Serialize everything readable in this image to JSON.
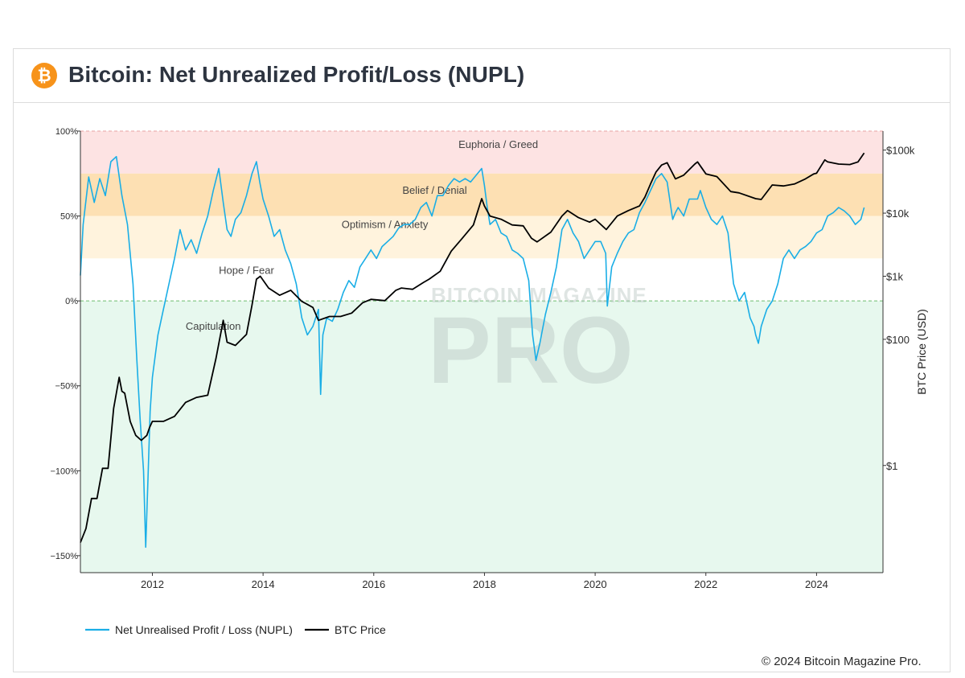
{
  "header": {
    "title": "Bitcoin: Net Unrealized Profit/Loss (NUPL)",
    "logo_glyph": "₿"
  },
  "footer": {
    "credit": "© 2024 Bitcoin Magazine Pro."
  },
  "watermark": {
    "line1": "BITCOIN MAGAZINE",
    "line2": "PRO"
  },
  "chart_data": {
    "type": "line",
    "title": "Bitcoin: Net Unrealized Profit/Loss (NUPL)",
    "x_range": [
      2010.7,
      2025.2
    ],
    "x_ticks": [
      2012,
      2014,
      2016,
      2018,
      2020,
      2022,
      2024
    ],
    "x_tick_labels": [
      "2012",
      "2014",
      "2016",
      "2018",
      "2020",
      "2022",
      "2024"
    ],
    "y_left": {
      "range": [
        -160,
        100
      ],
      "ticks": [
        100,
        50,
        0,
        -50,
        -100,
        -150
      ],
      "tick_labels": [
        "100%",
        "50%",
        "0%",
        "−50%",
        "−100%",
        "−150%"
      ]
    },
    "y_right": {
      "label": "BTC Price (USD)",
      "scale": "log",
      "range": [
        0.02,
        200000
      ],
      "ticks": [
        100000,
        10000,
        1000,
        100,
        1
      ],
      "tick_labels": [
        "$100k",
        "$10k",
        "$1k",
        "$100",
        "$1"
      ]
    },
    "zones": [
      {
        "name": "Euphoria / Greed",
        "from": 75,
        "to": 100,
        "color": "#fde3e3"
      },
      {
        "name": "Belief / Denial",
        "from": 50,
        "to": 75,
        "color": "#fde0b3"
      },
      {
        "name": "Optimism / Anxiety",
        "from": 25,
        "to": 50,
        "color": "#fff3dd"
      },
      {
        "name": "Hope / Fear",
        "from": 0,
        "to": 25,
        "color": "#ffffff"
      },
      {
        "name": "Capitulation",
        "from": -160,
        "to": 0,
        "color": "#e7f8ee"
      }
    ],
    "legend": [
      {
        "name": "Net Unrealised Profit / Loss (NUPL)",
        "color": "#1aaee6"
      },
      {
        "name": "BTC Price",
        "color": "#000000"
      }
    ],
    "series": [
      {
        "name": "Net Unrealised Profit / Loss (NUPL)",
        "axis": "left",
        "color": "#1aaee6",
        "x": [
          2010.7,
          2010.75,
          2010.85,
          2010.95,
          2011.05,
          2011.15,
          2011.25,
          2011.35,
          2011.45,
          2011.55,
          2011.65,
          2011.72,
          2011.78,
          2011.84,
          2011.88,
          2011.92,
          2011.96,
          2012.0,
          2012.1,
          2012.2,
          2012.3,
          2012.4,
          2012.5,
          2012.6,
          2012.7,
          2012.8,
          2012.9,
          2013.0,
          2013.1,
          2013.2,
          2013.28,
          2013.35,
          2013.42,
          2013.5,
          2013.6,
          2013.7,
          2013.8,
          2013.88,
          2013.94,
          2014.0,
          2014.1,
          2014.2,
          2014.3,
          2014.4,
          2014.5,
          2014.6,
          2014.7,
          2014.8,
          2014.9,
          2015.0,
          2015.04,
          2015.08,
          2015.15,
          2015.25,
          2015.35,
          2015.45,
          2015.55,
          2015.65,
          2015.75,
          2015.85,
          2015.95,
          2016.05,
          2016.15,
          2016.25,
          2016.35,
          2016.45,
          2016.55,
          2016.65,
          2016.75,
          2016.85,
          2016.95,
          2017.05,
          2017.15,
          2017.25,
          2017.35,
          2017.45,
          2017.55,
          2017.65,
          2017.75,
          2017.85,
          2017.95,
          2018.0,
          2018.05,
          2018.1,
          2018.2,
          2018.3,
          2018.4,
          2018.5,
          2018.6,
          2018.7,
          2018.8,
          2018.87,
          2018.93,
          2019.0,
          2019.1,
          2019.2,
          2019.3,
          2019.4,
          2019.5,
          2019.6,
          2019.7,
          2019.8,
          2019.9,
          2020.0,
          2020.1,
          2020.19,
          2020.22,
          2020.3,
          2020.4,
          2020.5,
          2020.6,
          2020.7,
          2020.8,
          2020.9,
          2021.0,
          2021.1,
          2021.2,
          2021.3,
          2021.4,
          2021.45,
          2021.5,
          2021.6,
          2021.7,
          2021.8,
          2021.85,
          2021.9,
          2022.0,
          2022.1,
          2022.2,
          2022.3,
          2022.4,
          2022.45,
          2022.5,
          2022.6,
          2022.7,
          2022.8,
          2022.87,
          2022.9,
          2022.95,
          2023.0,
          2023.1,
          2023.2,
          2023.3,
          2023.4,
          2023.5,
          2023.6,
          2023.7,
          2023.8,
          2023.9,
          2024.0,
          2024.1,
          2024.2,
          2024.3,
          2024.4,
          2024.5,
          2024.6,
          2024.7,
          2024.8,
          2024.86
        ],
        "values": [
          15,
          45,
          73,
          58,
          72,
          62,
          82,
          85,
          62,
          45,
          10,
          -35,
          -70,
          -100,
          -145,
          -105,
          -65,
          -45,
          -20,
          -5,
          10,
          25,
          42,
          30,
          36,
          28,
          40,
          50,
          65,
          78,
          58,
          42,
          38,
          48,
          52,
          62,
          75,
          82,
          70,
          60,
          50,
          38,
          42,
          30,
          22,
          10,
          -10,
          -20,
          -15,
          -5,
          -55,
          -20,
          -10,
          -12,
          -5,
          5,
          12,
          8,
          20,
          25,
          30,
          25,
          32,
          35,
          38,
          43,
          45,
          45,
          48,
          55,
          58,
          50,
          62,
          62,
          68,
          72,
          70,
          72,
          70,
          74,
          78,
          68,
          55,
          45,
          48,
          40,
          38,
          30,
          28,
          25,
          12,
          -20,
          -35,
          -25,
          -8,
          5,
          20,
          42,
          48,
          40,
          35,
          25,
          30,
          35,
          35,
          28,
          -3,
          20,
          28,
          35,
          40,
          42,
          52,
          58,
          65,
          72,
          75,
          70,
          48,
          52,
          55,
          50,
          60,
          60,
          60,
          65,
          55,
          48,
          45,
          50,
          40,
          25,
          10,
          0,
          5,
          -10,
          -15,
          -20,
          -25,
          -15,
          -5,
          0,
          10,
          25,
          30,
          25,
          30,
          32,
          35,
          40,
          42,
          50,
          52,
          55,
          53,
          50,
          45,
          48,
          55
        ]
      },
      {
        "name": "BTC Price",
        "axis": "right",
        "color": "#000000",
        "x": [
          2010.7,
          2010.8,
          2010.9,
          2011.0,
          2011.1,
          2011.2,
          2011.3,
          2011.4,
          2011.45,
          2011.5,
          2011.6,
          2011.7,
          2011.8,
          2011.9,
          2011.95,
          2012.0,
          2012.2,
          2012.4,
          2012.6,
          2012.8,
          2013.0,
          2013.15,
          2013.28,
          2013.35,
          2013.5,
          2013.7,
          2013.8,
          2013.88,
          2013.95,
          2014.1,
          2014.3,
          2014.5,
          2014.7,
          2014.9,
          2015.0,
          2015.2,
          2015.4,
          2015.6,
          2015.8,
          2015.95,
          2016.2,
          2016.4,
          2016.5,
          2016.7,
          2016.9,
          2017.0,
          2017.2,
          2017.4,
          2017.6,
          2017.8,
          2017.95,
          2018.0,
          2018.1,
          2018.3,
          2018.5,
          2018.7,
          2018.85,
          2018.95,
          2019.2,
          2019.4,
          2019.5,
          2019.7,
          2019.9,
          2020.0,
          2020.2,
          2020.4,
          2020.6,
          2020.8,
          2020.9,
          2021.0,
          2021.1,
          2021.2,
          2021.3,
          2021.45,
          2021.6,
          2021.8,
          2021.85,
          2022.0,
          2022.2,
          2022.45,
          2022.6,
          2022.9,
          2023.0,
          2023.2,
          2023.4,
          2023.6,
          2023.8,
          2023.95,
          2024.0,
          2024.15,
          2024.2,
          2024.4,
          2024.6,
          2024.75,
          2024.86
        ],
        "values": [
          0.06,
          0.1,
          0.3,
          0.3,
          0.9,
          0.9,
          8,
          25,
          15,
          14,
          5,
          3,
          2.5,
          3,
          4,
          5,
          5,
          6,
          10,
          12,
          13,
          50,
          200,
          90,
          80,
          120,
          350,
          900,
          1000,
          650,
          500,
          600,
          400,
          320,
          200,
          230,
          230,
          260,
          380,
          430,
          410,
          600,
          650,
          620,
          800,
          900,
          1200,
          2500,
          4000,
          6500,
          17000,
          13000,
          9000,
          8000,
          6500,
          6300,
          4000,
          3500,
          5000,
          9000,
          11000,
          8500,
          7200,
          8000,
          5500,
          9000,
          11000,
          13000,
          18000,
          29000,
          45000,
          58000,
          63000,
          35000,
          40000,
          60000,
          65000,
          42000,
          38000,
          22000,
          21000,
          17000,
          16500,
          28000,
          27000,
          29000,
          35000,
          42000,
          43000,
          70000,
          65000,
          60000,
          59000,
          65000,
          90000
        ]
      }
    ]
  }
}
